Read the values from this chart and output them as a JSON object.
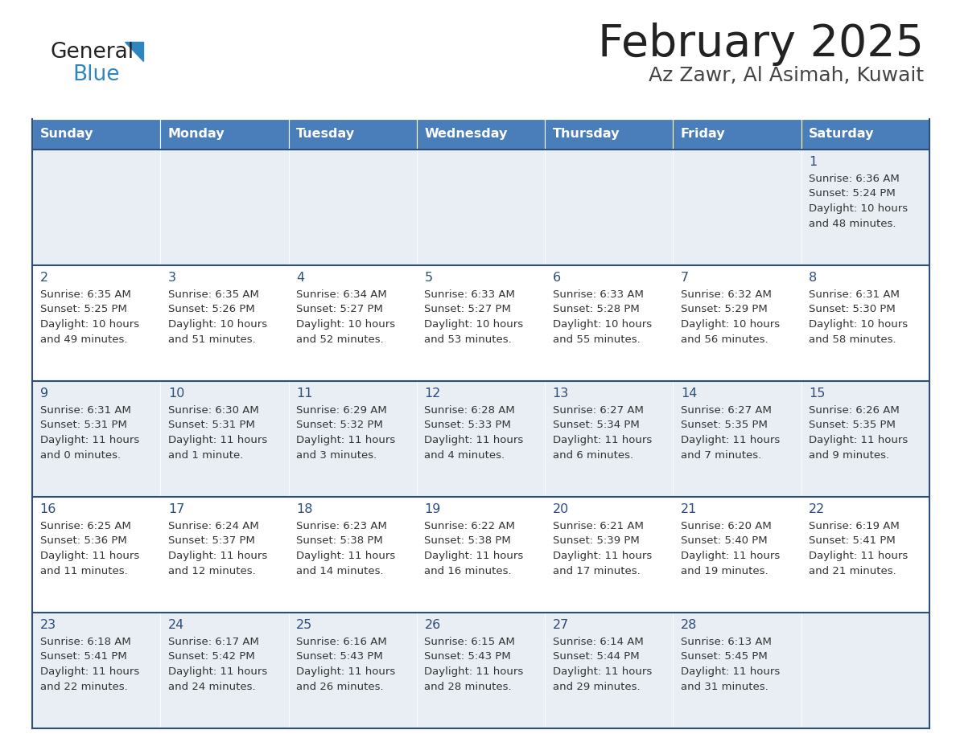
{
  "title": "February 2025",
  "subtitle": "Az Zawr, Al Asimah, Kuwait",
  "days_of_week": [
    "Sunday",
    "Monday",
    "Tuesday",
    "Wednesday",
    "Thursday",
    "Friday",
    "Saturday"
  ],
  "header_bg": "#4A7EBB",
  "header_text_color": "#FFFFFF",
  "odd_row_bg": "#E8EEF4",
  "even_row_bg": "#FFFFFF",
  "cell_text_color": "#333333",
  "day_num_color": "#2C4E7A",
  "row_border_color": "#2C4E7A",
  "outer_border_color": "#2C4E7A",
  "logo_general_color": "#222222",
  "logo_blue_color": "#2E86C1",
  "logo_triangle_color": "#2E86C1",
  "title_color": "#222222",
  "subtitle_color": "#444444",
  "weeks": [
    [
      {
        "day": null,
        "info": null
      },
      {
        "day": null,
        "info": null
      },
      {
        "day": null,
        "info": null
      },
      {
        "day": null,
        "info": null
      },
      {
        "day": null,
        "info": null
      },
      {
        "day": null,
        "info": null
      },
      {
        "day": 1,
        "info": "Sunrise: 6:36 AM\nSunset: 5:24 PM\nDaylight: 10 hours\nand 48 minutes."
      }
    ],
    [
      {
        "day": 2,
        "info": "Sunrise: 6:35 AM\nSunset: 5:25 PM\nDaylight: 10 hours\nand 49 minutes."
      },
      {
        "day": 3,
        "info": "Sunrise: 6:35 AM\nSunset: 5:26 PM\nDaylight: 10 hours\nand 51 minutes."
      },
      {
        "day": 4,
        "info": "Sunrise: 6:34 AM\nSunset: 5:27 PM\nDaylight: 10 hours\nand 52 minutes."
      },
      {
        "day": 5,
        "info": "Sunrise: 6:33 AM\nSunset: 5:27 PM\nDaylight: 10 hours\nand 53 minutes."
      },
      {
        "day": 6,
        "info": "Sunrise: 6:33 AM\nSunset: 5:28 PM\nDaylight: 10 hours\nand 55 minutes."
      },
      {
        "day": 7,
        "info": "Sunrise: 6:32 AM\nSunset: 5:29 PM\nDaylight: 10 hours\nand 56 minutes."
      },
      {
        "day": 8,
        "info": "Sunrise: 6:31 AM\nSunset: 5:30 PM\nDaylight: 10 hours\nand 58 minutes."
      }
    ],
    [
      {
        "day": 9,
        "info": "Sunrise: 6:31 AM\nSunset: 5:31 PM\nDaylight: 11 hours\nand 0 minutes."
      },
      {
        "day": 10,
        "info": "Sunrise: 6:30 AM\nSunset: 5:31 PM\nDaylight: 11 hours\nand 1 minute."
      },
      {
        "day": 11,
        "info": "Sunrise: 6:29 AM\nSunset: 5:32 PM\nDaylight: 11 hours\nand 3 minutes."
      },
      {
        "day": 12,
        "info": "Sunrise: 6:28 AM\nSunset: 5:33 PM\nDaylight: 11 hours\nand 4 minutes."
      },
      {
        "day": 13,
        "info": "Sunrise: 6:27 AM\nSunset: 5:34 PM\nDaylight: 11 hours\nand 6 minutes."
      },
      {
        "day": 14,
        "info": "Sunrise: 6:27 AM\nSunset: 5:35 PM\nDaylight: 11 hours\nand 7 minutes."
      },
      {
        "day": 15,
        "info": "Sunrise: 6:26 AM\nSunset: 5:35 PM\nDaylight: 11 hours\nand 9 minutes."
      }
    ],
    [
      {
        "day": 16,
        "info": "Sunrise: 6:25 AM\nSunset: 5:36 PM\nDaylight: 11 hours\nand 11 minutes."
      },
      {
        "day": 17,
        "info": "Sunrise: 6:24 AM\nSunset: 5:37 PM\nDaylight: 11 hours\nand 12 minutes."
      },
      {
        "day": 18,
        "info": "Sunrise: 6:23 AM\nSunset: 5:38 PM\nDaylight: 11 hours\nand 14 minutes."
      },
      {
        "day": 19,
        "info": "Sunrise: 6:22 AM\nSunset: 5:38 PM\nDaylight: 11 hours\nand 16 minutes."
      },
      {
        "day": 20,
        "info": "Sunrise: 6:21 AM\nSunset: 5:39 PM\nDaylight: 11 hours\nand 17 minutes."
      },
      {
        "day": 21,
        "info": "Sunrise: 6:20 AM\nSunset: 5:40 PM\nDaylight: 11 hours\nand 19 minutes."
      },
      {
        "day": 22,
        "info": "Sunrise: 6:19 AM\nSunset: 5:41 PM\nDaylight: 11 hours\nand 21 minutes."
      }
    ],
    [
      {
        "day": 23,
        "info": "Sunrise: 6:18 AM\nSunset: 5:41 PM\nDaylight: 11 hours\nand 22 minutes."
      },
      {
        "day": 24,
        "info": "Sunrise: 6:17 AM\nSunset: 5:42 PM\nDaylight: 11 hours\nand 24 minutes."
      },
      {
        "day": 25,
        "info": "Sunrise: 6:16 AM\nSunset: 5:43 PM\nDaylight: 11 hours\nand 26 minutes."
      },
      {
        "day": 26,
        "info": "Sunrise: 6:15 AM\nSunset: 5:43 PM\nDaylight: 11 hours\nand 28 minutes."
      },
      {
        "day": 27,
        "info": "Sunrise: 6:14 AM\nSunset: 5:44 PM\nDaylight: 11 hours\nand 29 minutes."
      },
      {
        "day": 28,
        "info": "Sunrise: 6:13 AM\nSunset: 5:45 PM\nDaylight: 11 hours\nand 31 minutes."
      },
      {
        "day": null,
        "info": null
      }
    ]
  ]
}
